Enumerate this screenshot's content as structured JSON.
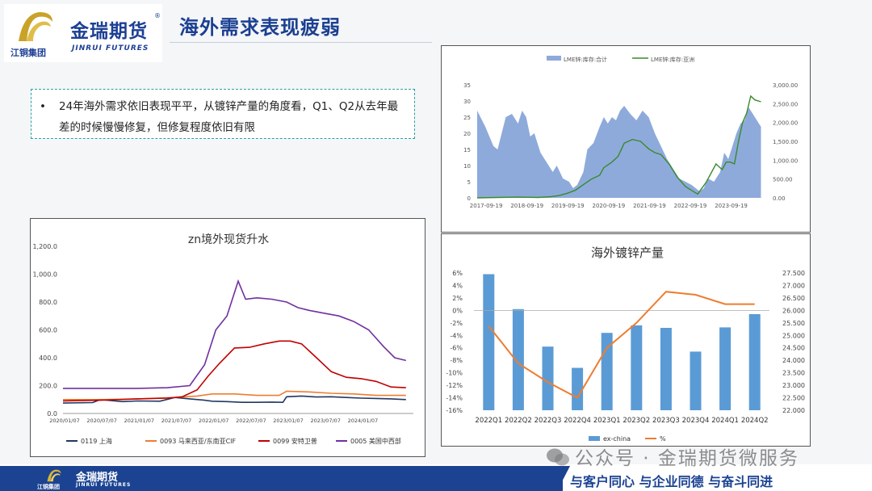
{
  "header": {
    "company_cn": "金瑞期货",
    "company_en": "JINRUI FUTURES",
    "group_cn": "江铜集团",
    "registered": "®",
    "title": "海外需求表现疲弱"
  },
  "bullet": {
    "dot": "•",
    "text": "24年海外需求依旧表现平平，从镀锌产量的角度看，Q1、Q2从去年最差的时候慢慢修复，但修复程度依旧有限"
  },
  "footer": {
    "company_cn": "金瑞期货",
    "company_en": "JINRUI FUTURES",
    "group_cn": "江铜集团",
    "slogan": "与客户同心 与企业同德 与奋斗同进",
    "watermark": "公众号 · 金瑞期货微服务"
  },
  "colors": {
    "brand_blue": "#1b4392",
    "lme_area": "#8eaadb",
    "lme_line": "#3a8a2a",
    "bar_blue": "#5b9bd5",
    "line_orange": "#ed7d31"
  },
  "chart_data": [
    {
      "id": "lme",
      "type": "area",
      "title": "",
      "legend": [
        "LME锌:库存:合计",
        "LME锌:库存:亚洲"
      ],
      "legend_position": "top",
      "x_ticks": [
        "2017-09-19",
        "2018-09-19",
        "2019-09-19",
        "2020-09-19",
        "2021-09-19",
        "2022-09-19",
        "2023-09-19"
      ],
      "y_left_ticks": [
        "0",
        "5",
        "10",
        "15",
        "20",
        "25",
        "30",
        "35"
      ],
      "y_right_ticks": [
        "0.00",
        "500.00",
        "1,000.00",
        "1,500.00",
        "2,000.00",
        "2,500.00",
        "3,000.00"
      ],
      "ylim_left": [
        0,
        35
      ],
      "ylim_right": [
        0,
        3000
      ],
      "series": [
        {
          "name": "LME锌:库存:合计",
          "axis": "left",
          "x": [
            2017.5,
            2017.7,
            2017.9,
            2018.0,
            2018.2,
            2018.35,
            2018.5,
            2018.6,
            2018.7,
            2018.8,
            2018.9,
            2019.05,
            2019.2,
            2019.35,
            2019.45,
            2019.6,
            2019.75,
            2019.85,
            2019.95,
            2020.1,
            2020.2,
            2020.35,
            2020.5,
            2020.6,
            2020.7,
            2020.8,
            2020.9,
            2021.0,
            2021.1,
            2021.25,
            2021.4,
            2021.55,
            2021.7,
            2021.85,
            2022.0,
            2022.15,
            2022.3,
            2022.45,
            2022.6,
            2022.75,
            2022.85,
            2022.95,
            2023.05,
            2023.15,
            2023.3,
            2023.45,
            2023.55,
            2023.65,
            2023.75,
            2023.85,
            2023.95,
            2024.05,
            2024.15,
            2024.25,
            2024.35,
            2024.45
          ],
          "values": [
            27,
            22,
            16,
            15,
            25,
            26,
            23,
            27,
            25,
            19,
            20,
            14,
            11,
            8,
            10,
            6,
            5,
            3,
            4,
            8,
            15,
            17,
            22,
            25,
            23,
            25,
            24,
            27,
            28.5,
            26,
            24,
            27,
            25,
            20,
            16,
            12,
            9,
            6,
            5,
            4,
            3,
            2,
            3,
            6,
            5,
            8,
            14,
            12,
            16,
            20,
            23,
            24,
            28,
            26,
            24,
            22
          ]
        },
        {
          "name": "LME锌:库存:亚洲",
          "axis": "right",
          "x": [
            2017.5,
            2018.0,
            2018.5,
            2019.0,
            2019.3,
            2019.5,
            2019.7,
            2019.9,
            2020.1,
            2020.3,
            2020.5,
            2020.6,
            2020.8,
            2020.95,
            2021.1,
            2021.3,
            2021.5,
            2021.7,
            2021.85,
            2022.0,
            2022.2,
            2022.4,
            2022.6,
            2022.75,
            2022.9,
            2023.0,
            2023.1,
            2023.2,
            2023.35,
            2023.5,
            2023.6,
            2023.7,
            2023.8,
            2023.9,
            2024.0,
            2024.1,
            2024.2,
            2024.3,
            2024.45
          ],
          "values": [
            0,
            10,
            20,
            10,
            30,
            60,
            120,
            200,
            350,
            500,
            600,
            800,
            950,
            1100,
            1450,
            1550,
            1500,
            1300,
            1200,
            1150,
            900,
            550,
            300,
            200,
            100,
            250,
            400,
            600,
            900,
            750,
            950,
            950,
            900,
            1500,
            2000,
            2250,
            2700,
            2600,
            2550
          ]
        }
      ]
    },
    {
      "id": "premium",
      "type": "line",
      "title": "zn境外现货升水",
      "x_ticks": [
        "2020/01/07",
        "2020/07/07",
        "2021/01/07",
        "2021/07/07",
        "2022/01/07",
        "2022/07/07",
        "2023/01/07",
        "2023/07/07",
        "2024/01/07"
      ],
      "y_ticks": [
        "0.0",
        "200.0",
        "400.0",
        "600.0",
        "800.0",
        "1,000.0",
        "1,200.0"
      ],
      "ylim": [
        0,
        1200
      ],
      "legend_position": "bottom",
      "series": [
        {
          "name": "0119 上海",
          "color": "#203864",
          "x": [
            2020.0,
            2020.4,
            2020.5,
            2020.8,
            2021.0,
            2021.3,
            2021.5,
            2021.7,
            2021.9,
            2022.0,
            2022.2,
            2022.4,
            2022.6,
            2022.8,
            2022.95,
            2023.0,
            2023.2,
            2023.4,
            2023.6,
            2023.8,
            2024.0,
            2024.2,
            2024.4,
            2024.6
          ],
          "values": [
            75,
            78,
            100,
            85,
            90,
            88,
            115,
            105,
            95,
            88,
            85,
            80,
            80,
            82,
            80,
            120,
            125,
            118,
            120,
            115,
            110,
            108,
            105,
            100
          ]
        },
        {
          "name": "0093 马来西亚/东南亚CIF",
          "color": "#ed7d31",
          "x": [
            2020.0,
            2020.5,
            2021.0,
            2021.5,
            2021.8,
            2022.0,
            2022.3,
            2022.6,
            2022.9,
            2023.0,
            2023.3,
            2023.6,
            2023.9,
            2024.2,
            2024.6
          ],
          "values": [
            100,
            100,
            105,
            115,
            125,
            140,
            140,
            130,
            130,
            160,
            155,
            145,
            140,
            130,
            130
          ]
        },
        {
          "name": "0099 安特卫普",
          "color": "#c00000",
          "x": [
            2020.0,
            2020.5,
            2021.0,
            2021.4,
            2021.6,
            2021.8,
            2021.95,
            2022.1,
            2022.3,
            2022.5,
            2022.7,
            2022.9,
            2023.05,
            2023.2,
            2023.4,
            2023.6,
            2023.8,
            2024.0,
            2024.2,
            2024.4,
            2024.6
          ],
          "values": [
            90,
            95,
            105,
            110,
            120,
            170,
            270,
            360,
            470,
            475,
            500,
            520,
            520,
            500,
            400,
            300,
            260,
            250,
            230,
            190,
            185
          ]
        },
        {
          "name": "0005 美国中西部",
          "color": "#7030a0",
          "x": [
            2020.0,
            2020.5,
            2021.0,
            2021.4,
            2021.7,
            2021.9,
            2022.05,
            2022.2,
            2022.35,
            2022.45,
            2022.6,
            2022.8,
            2023.0,
            2023.15,
            2023.3,
            2023.5,
            2023.7,
            2023.9,
            2024.1,
            2024.3,
            2024.45,
            2024.6
          ],
          "values": [
            180,
            180,
            180,
            185,
            200,
            350,
            600,
            700,
            950,
            820,
            830,
            820,
            800,
            760,
            740,
            720,
            700,
            660,
            600,
            480,
            400,
            380
          ]
        }
      ]
    },
    {
      "id": "galv",
      "type": "bar",
      "title": "海外镀锌产量",
      "categories": [
        "2022Q1",
        "2022Q2",
        "2022Q3",
        "2022Q4",
        "2023Q1",
        "2023Q2",
        "2023Q3",
        "2023Q4",
        "2024Q1",
        "2024Q2"
      ],
      "y_left_ticks": [
        "-16%",
        "-14%",
        "-12%",
        "-10%",
        "-8%",
        "-6%",
        "-4%",
        "-2%",
        "0%",
        "2%",
        "4%",
        "6%"
      ],
      "y_right_ticks": [
        "22.000",
        "22.500",
        "23.000",
        "23.500",
        "24.000",
        "24.500",
        "25.000",
        "25.500",
        "26.000",
        "26.500",
        "27.000",
        "27.500"
      ],
      "ylim_left": [
        -16,
        6
      ],
      "ylim_right": [
        22,
        27.5
      ],
      "legend_position": "bottom",
      "series": [
        {
          "name": "ex-china",
          "type": "bar",
          "axis": "right",
          "values": [
            27.45,
            26.05,
            24.55,
            23.7,
            25.1,
            25.4,
            25.3,
            24.35,
            25.32,
            25.85
          ]
        },
        {
          "name": "%",
          "type": "line",
          "axis": "left",
          "values": [
            -2.5,
            -8.5,
            -11.5,
            -14.0,
            -6.0,
            -2.0,
            3.0,
            2.5,
            1.0,
            1.0
          ]
        }
      ]
    }
  ]
}
